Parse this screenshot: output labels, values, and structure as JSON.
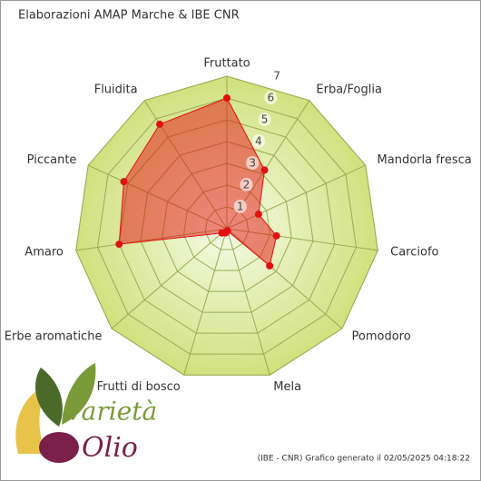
{
  "chart_data": {
    "type": "radar",
    "title": "Elaborazioni AMAP Marche & IBE CNR",
    "footer": "(IBE - CNR) Grafico generato il 02/05/2025 04:18:22",
    "logo_words": [
      "Varietà",
      "Olio"
    ],
    "categories": [
      "Fruttato",
      "Erba/Foglia",
      "Mandorla fresca",
      "Carciofo",
      "Pomodoro",
      "Mela",
      "Frutti di bosco",
      "Erbe aromatiche",
      "Amaro",
      "Piccante",
      "Fluidita"
    ],
    "series": [
      {
        "name": "Profilo",
        "color": "#e31010",
        "values": [
          6.0,
          3.2,
          1.6,
          2.3,
          2.6,
          0.1,
          0.2,
          0.3,
          5.0,
          5.2,
          5.7
        ]
      }
    ],
    "ylim": [
      0,
      7
    ],
    "yticks": [
      1,
      2,
      3,
      4,
      5,
      6,
      7
    ],
    "grid": true
  }
}
